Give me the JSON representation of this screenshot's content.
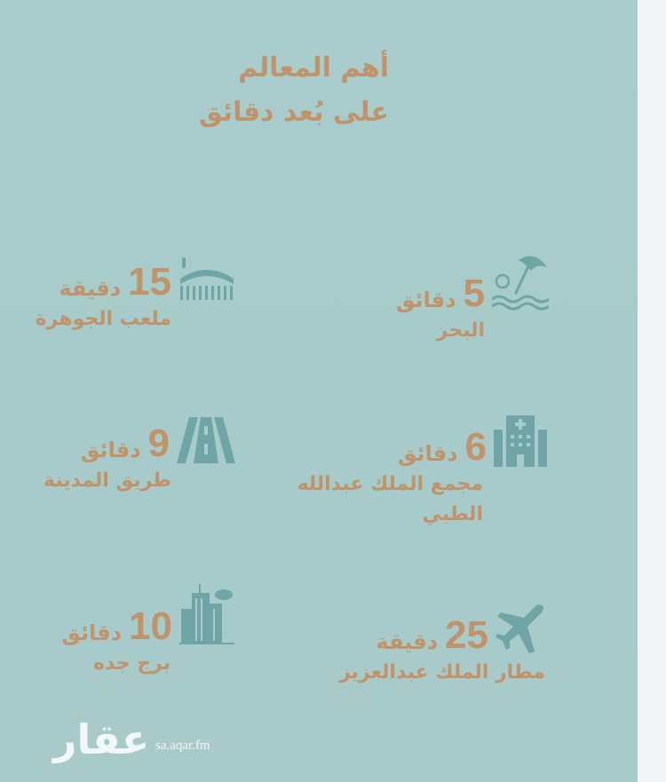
{
  "header": {
    "line1": "أهم المعالم",
    "line2": "على بُعد دقائق"
  },
  "colors": {
    "background": "#a8cccb",
    "text": "#c0936a",
    "icon": "#6fa5a6"
  },
  "landmarks": [
    {
      "icon": "beach-umbrella-icon",
      "number": "5",
      "unit": "دقائق",
      "name": "البحر"
    },
    {
      "icon": "stadium-icon",
      "number": "15",
      "unit": "دقيقة",
      "name": "ملعب الجوهرة"
    },
    {
      "icon": "hospital-icon",
      "number": "6",
      "unit": "دقائق",
      "name": "مجمع الملك عبدالله",
      "name2": "الطبي"
    },
    {
      "icon": "road-icon",
      "number": "9",
      "unit": "دقائق",
      "name": "طريق المدينة"
    },
    {
      "icon": "airplane-icon",
      "number": "25",
      "unit": "دقيقة",
      "name": "مطار الملك عبدالعزيز"
    },
    {
      "icon": "tower-buildings-icon",
      "number": "10",
      "unit": "دقائق",
      "name": "برج جده"
    }
  ],
  "watermark": {
    "logo": "عقار",
    "url": "sa.aqar.fm"
  }
}
